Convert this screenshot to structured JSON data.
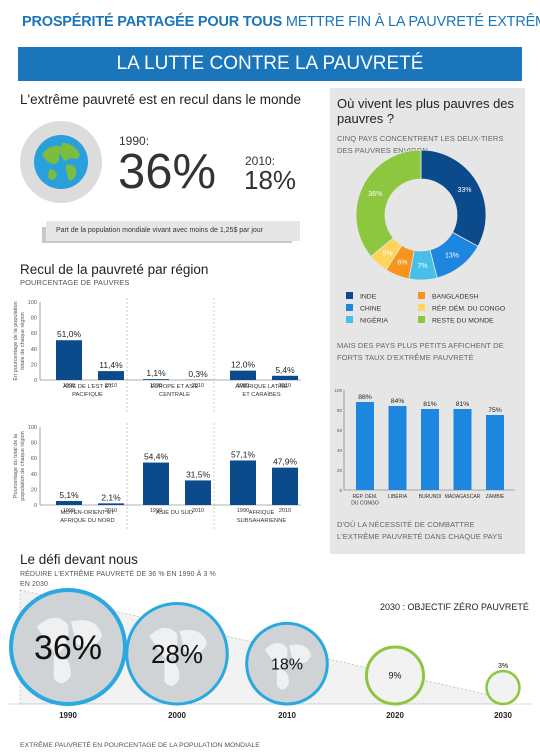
{
  "header": {
    "title_bold": "PROSPÉRITÉ PARTAGÉE POUR TOUS",
    "title_light": "METTRE FIN À LA PAUVRETÉ EXTRÊME",
    "banner": "LA LUTTE CONTRE LA PAUVRETÉ"
  },
  "decline": {
    "heading": "L'extrême pauvreté est en recul dans le monde",
    "year1_label": "1990:",
    "year1_value": "36%",
    "year2_label": "2010:",
    "year2_value": "18%",
    "caption": "Part de la population mondiale vivant avec moins de 1,25$ par jour"
  },
  "region": {
    "heading": "Recul de la pauvreté par région",
    "subheading": "POURCENTAGE DE PAUVRES",
    "ylabel": "En pourcentage de la population totale de chaque région",
    "ylabel2": "Pourcentage du total de la population de chaque région"
  },
  "right_panel": {
    "heading": "Où vivent les plus pauvres des pauvres ?",
    "subheading": "CINQ PAYS CONCENTRENT LES DEUX-TIERS DES PAUVRES ENVIRON",
    "subheading2": "MAIS DES PAYS PLUS PETITS AFFICHENT DE FORTS TAUX D'EXTRÊME PAUVRETÉ",
    "footer": "D'OÙ LA NÉCESSITÉ DE COMBATTRE L'EXTRÊME PAUVRETÉ DANS CHAQUE PAYS"
  },
  "challenge": {
    "heading": "Le défi devant nous",
    "sub1": "RÉDUIRE L'EXTRÊME PAUVRETÉ DE 36 % EN 1990 À 3 %",
    "sub2": "EN 2030",
    "goal": "2030 : OBJECTIF ZÉRO PAUVRETÉ",
    "footer": "EXTRÊME PAUVRETÉ  EN POURCENTAGE DE LA POPULATION MONDIALE"
  },
  "colors": {
    "blue": "#1b75bb",
    "navy": "#0b4a8b",
    "bar_blue": "#1d87e0",
    "green": "#8dc63f",
    "orange": "#f7941d",
    "yellow": "#fcd55a",
    "cyan": "#47bfe8",
    "gray": "#e6e6e6"
  },
  "chart_data": [
    {
      "type": "bar",
      "title": "Recul de la pauvreté par région",
      "ylabel": "En pourcentage de la population totale de chaque région",
      "ylim": [
        0,
        100
      ],
      "yticks": [
        "100",
        "80",
        "60",
        "40",
        "20",
        "0"
      ],
      "groups": [
        {
          "name": "ASIE DE L'EST ET PACIFIQUE",
          "categories": [
            "1990",
            "2010"
          ],
          "values": [
            51.0,
            11.4
          ],
          "labels": [
            "51,0%",
            "11,4%"
          ]
        },
        {
          "name": "EUROPE ET ASIE CENTRALE",
          "categories": [
            "1990",
            "2010"
          ],
          "values": [
            1.1,
            0.3
          ],
          "labels": [
            "1,1%",
            "0,3%"
          ]
        },
        {
          "name": "AMÉRIQUE LATINE ET CARAÏBES",
          "categories": [
            "1990",
            "2010"
          ],
          "values": [
            12.0,
            5.4
          ],
          "labels": [
            "12,0%",
            "5,4%"
          ]
        }
      ]
    },
    {
      "type": "bar",
      "ylabel": "Pourcentage du total de la population de chaque région",
      "ylim": [
        0,
        100
      ],
      "yticks": [
        "100",
        "80",
        "60",
        "40",
        "20",
        "0"
      ],
      "groups": [
        {
          "name": "MOYEN-ORIENT ET AFRIQUE DU NORD",
          "categories": [
            "1990",
            "2010"
          ],
          "values": [
            5.1,
            2.1
          ],
          "labels": [
            "5,1%",
            "2,1%"
          ]
        },
        {
          "name": "ASIE DU SUD",
          "categories": [
            "1990",
            "2010"
          ],
          "values": [
            54.4,
            31.5
          ],
          "labels": [
            "54,4%",
            "31,5%"
          ]
        },
        {
          "name": "AFRIQUE SUBSAHARIENNE",
          "categories": [
            "1990",
            "2010"
          ],
          "values": [
            57.1,
            47.9
          ],
          "labels": [
            "57,1%",
            "47,9%"
          ]
        }
      ]
    },
    {
      "type": "pie",
      "title": "Où vivent les plus pauvres des pauvres ?",
      "categories": [
        "INDE",
        "CHINE",
        "NIGÉRIA",
        "BANGLADESH",
        "RÉP. DÉM. DU CONGO",
        "RESTE DU MONDE"
      ],
      "values": [
        33,
        13,
        7,
        6,
        5,
        36
      ],
      "labels": [
        "33%",
        "13%",
        "7%",
        "6%",
        "5%",
        "36%"
      ],
      "colors": [
        "#0b4a8b",
        "#1d87e0",
        "#47bfe8",
        "#f7941d",
        "#fcd55a",
        "#8dc63f"
      ],
      "legend_rows": [
        [
          "INDE",
          "BANGLADESH"
        ],
        [
          "CHINE",
          "RÉP. DÉM. DU CONGO"
        ],
        [
          "NIGÉRIA",
          "RESTE DU MONDE"
        ]
      ]
    },
    {
      "type": "bar",
      "categories": [
        "RÉP. DÉM. DU CONGO",
        "LIBÉRIA",
        "BURUNDI",
        "MADAGASCAR",
        "ZAMBIE"
      ],
      "category_lines": [
        [
          "RÉP. DÉM.",
          "DU CONGO"
        ],
        [
          "LIBÉRIA"
        ],
        [
          "BURUNDI"
        ],
        [
          "MADAGASCAR"
        ],
        [
          "ZAMBIE"
        ]
      ],
      "values": [
        88,
        84,
        81,
        81,
        75
      ],
      "labels": [
        "88%",
        "84%",
        "81%",
        "81%",
        "75%"
      ],
      "ylim": [
        0,
        100
      ],
      "yticks": [
        "100",
        "80",
        "60",
        "40",
        "20",
        "0"
      ]
    },
    {
      "type": "bubble",
      "title": "Le défi devant nous",
      "xlabel": "EXTRÊME PAUVRETÉ  EN POURCENTAGE DE LA POPULATION MONDIALE",
      "x": [
        "1990",
        "2000",
        "2010",
        "2020",
        "2030"
      ],
      "values": [
        36,
        28,
        18,
        9,
        3
      ],
      "labels": [
        "36%",
        "28%",
        "18%",
        "9%",
        "3%"
      ]
    }
  ]
}
